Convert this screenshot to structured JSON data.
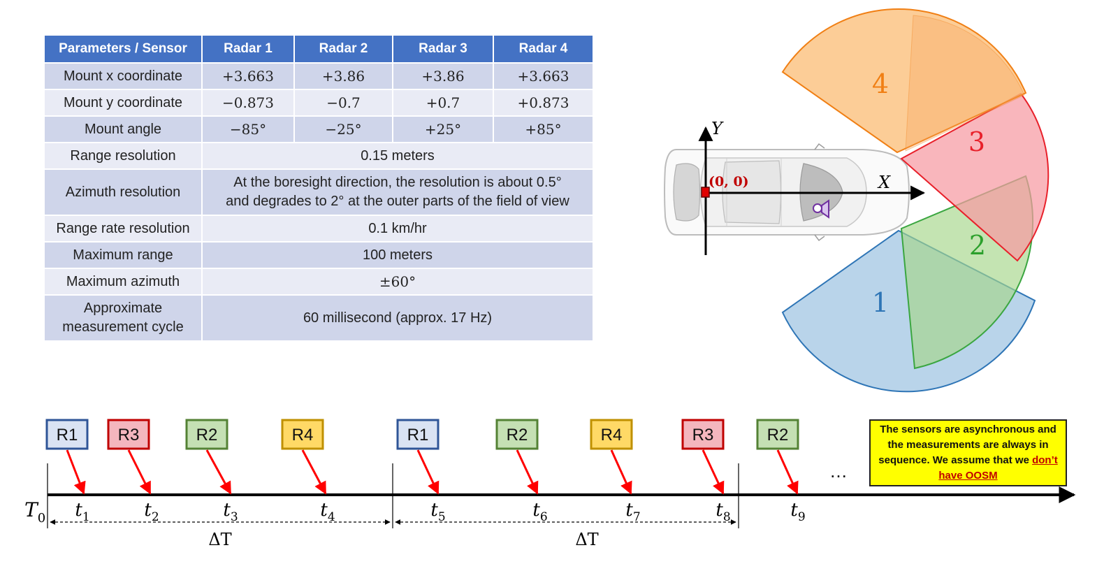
{
  "table": {
    "headers": [
      "Parameters / Sensor",
      "Radar 1",
      "Radar 2",
      "Radar 3",
      "Radar 4"
    ],
    "rows": [
      {
        "label": "Mount x coordinate",
        "values": [
          "+3.663",
          "+3.86",
          "+3.86",
          "+3.663"
        ]
      },
      {
        "label": "Mount y coordinate",
        "values": [
          "−0.873",
          "−0.7",
          "+0.7",
          "+0.873"
        ]
      },
      {
        "label": "Mount angle",
        "values": [
          "−85°",
          "−25°",
          "+25°",
          "+85°"
        ]
      },
      {
        "label": "Range resolution",
        "value": "0.15 meters"
      },
      {
        "label": "Azimuth resolution",
        "value_line1": "At the boresight direction, the resolution is about 0.5°",
        "value_line2": "and degrades to 2° at the outer parts of the field of view"
      },
      {
        "label": "Range rate resolution",
        "value": "0.1 km/hr"
      },
      {
        "label": "Maximum range",
        "value": "100 meters"
      },
      {
        "label": "Maximum azimuth",
        "value": "±60°"
      },
      {
        "label_line1": "Approximate",
        "label_line2": "measurement cycle",
        "value": "60 millisecond (approx. 17 Hz)"
      }
    ]
  },
  "diagram": {
    "y_axis_label": "Y",
    "x_axis_label": "X",
    "origin_label": "(0, 0)",
    "sector_labels": [
      "1",
      "2",
      "3",
      "4"
    ],
    "colors": {
      "radar1": "#1f77b4",
      "radar2": "#2ca02c",
      "radar3": "#e8202a",
      "radar4": "#ff7f0e",
      "origin": "#c00000"
    }
  },
  "timeline": {
    "t0": "T",
    "t0_sub": "0",
    "events": [
      {
        "sensor": "R1",
        "time": "t",
        "sub": "1"
      },
      {
        "sensor": "R3",
        "time": "t",
        "sub": "2"
      },
      {
        "sensor": "R2",
        "time": "t",
        "sub": "3"
      },
      {
        "sensor": "R4",
        "time": "t",
        "sub": "4"
      },
      {
        "sensor": "R1",
        "time": "t",
        "sub": "5"
      },
      {
        "sensor": "R2",
        "time": "t",
        "sub": "6"
      },
      {
        "sensor": "R4",
        "time": "t",
        "sub": "7"
      },
      {
        "sensor": "R3",
        "time": "t",
        "sub": "8"
      },
      {
        "sensor": "R2",
        "time": "t",
        "sub": "9"
      }
    ],
    "delta1": "ΔT",
    "delta2": "ΔT",
    "ellipsis": "…",
    "sensor_colors": {
      "R1": {
        "fill": "#dae3f3",
        "stroke": "#2f5597"
      },
      "R2": {
        "fill": "#c5e0b4",
        "stroke": "#548235"
      },
      "R3": {
        "fill": "#f4b6be",
        "stroke": "#c00000"
      },
      "R4": {
        "fill": "#ffd966",
        "stroke": "#bf9000"
      }
    }
  },
  "note": {
    "text": "The sensors are asynchronous and the measurements are always in sequence. We assume that we ",
    "highlight": "don’t have OOSM"
  }
}
